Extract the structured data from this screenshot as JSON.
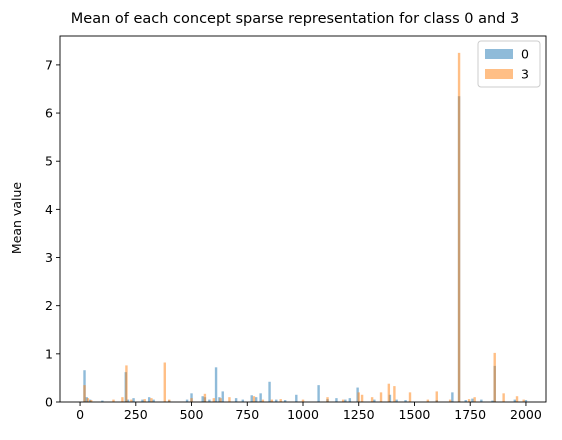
{
  "chart_data": {
    "type": "bar",
    "title": "Mean of each concept sparse representation for class 0 and 3",
    "xlabel": "",
    "ylabel": "Mean value",
    "xlim": [
      -90,
      2090
    ],
    "ylim": [
      0,
      7.6
    ],
    "xticks": [
      0,
      250,
      500,
      750,
      1000,
      1250,
      1500,
      1750,
      2000
    ],
    "yticks": [
      0,
      1,
      2,
      3,
      4,
      5,
      6,
      7
    ],
    "grid": false,
    "legend": "top-right",
    "series": [
      {
        "name": "0",
        "color": "#1f77b4",
        "alpha": 0.5,
        "points": [
          [
            20,
            0.66
          ],
          [
            30,
            0.1
          ],
          [
            45,
            0.05
          ],
          [
            100,
            0.03
          ],
          [
            205,
            0.62
          ],
          [
            215,
            0.05
          ],
          [
            240,
            0.08
          ],
          [
            280,
            0.05
          ],
          [
            310,
            0.1
          ],
          [
            330,
            0.05
          ],
          [
            400,
            0.03
          ],
          [
            480,
            0.05
          ],
          [
            500,
            0.18
          ],
          [
            550,
            0.12
          ],
          [
            560,
            0.1
          ],
          [
            580,
            0.05
          ],
          [
            610,
            0.72
          ],
          [
            625,
            0.1
          ],
          [
            640,
            0.22
          ],
          [
            700,
            0.08
          ],
          [
            730,
            0.05
          ],
          [
            770,
            0.14
          ],
          [
            790,
            0.1
          ],
          [
            810,
            0.18
          ],
          [
            850,
            0.42
          ],
          [
            880,
            0.05
          ],
          [
            920,
            0.04
          ],
          [
            970,
            0.15
          ],
          [
            1070,
            0.35
          ],
          [
            1110,
            0.06
          ],
          [
            1150,
            0.08
          ],
          [
            1190,
            0.05
          ],
          [
            1210,
            0.08
          ],
          [
            1245,
            0.3
          ],
          [
            1320,
            0.05
          ],
          [
            1390,
            0.15
          ],
          [
            1420,
            0.05
          ],
          [
            1460,
            0.04
          ],
          [
            1600,
            0.04
          ],
          [
            1670,
            0.2
          ],
          [
            1700,
            6.35
          ],
          [
            1730,
            0.04
          ],
          [
            1760,
            0.07
          ],
          [
            1800,
            0.05
          ],
          [
            1850,
            0.03
          ],
          [
            1860,
            0.75
          ],
          [
            1950,
            0.05
          ],
          [
            2000,
            0.04
          ]
        ]
      },
      {
        "name": "3",
        "color": "#ff7f0e",
        "alpha": 0.5,
        "points": [
          [
            20,
            0.35
          ],
          [
            35,
            0.08
          ],
          [
            50,
            0.04
          ],
          [
            150,
            0.05
          ],
          [
            190,
            0.1
          ],
          [
            208,
            0.76
          ],
          [
            230,
            0.05
          ],
          [
            290,
            0.06
          ],
          [
            320,
            0.08
          ],
          [
            380,
            0.82
          ],
          [
            400,
            0.05
          ],
          [
            500,
            0.08
          ],
          [
            560,
            0.17
          ],
          [
            600,
            0.08
          ],
          [
            630,
            0.08
          ],
          [
            670,
            0.1
          ],
          [
            780,
            0.12
          ],
          [
            820,
            0.05
          ],
          [
            860,
            0.05
          ],
          [
            900,
            0.06
          ],
          [
            1000,
            0.05
          ],
          [
            1110,
            0.1
          ],
          [
            1180,
            0.05
          ],
          [
            1250,
            0.2
          ],
          [
            1265,
            0.15
          ],
          [
            1310,
            0.1
          ],
          [
            1350,
            0.2
          ],
          [
            1385,
            0.38
          ],
          [
            1410,
            0.33
          ],
          [
            1480,
            0.2
          ],
          [
            1560,
            0.05
          ],
          [
            1600,
            0.22
          ],
          [
            1660,
            0.05
          ],
          [
            1700,
            7.25
          ],
          [
            1745,
            0.06
          ],
          [
            1770,
            0.1
          ],
          [
            1860,
            1.02
          ],
          [
            1900,
            0.18
          ],
          [
            1960,
            0.12
          ],
          [
            1990,
            0.05
          ]
        ]
      }
    ]
  }
}
